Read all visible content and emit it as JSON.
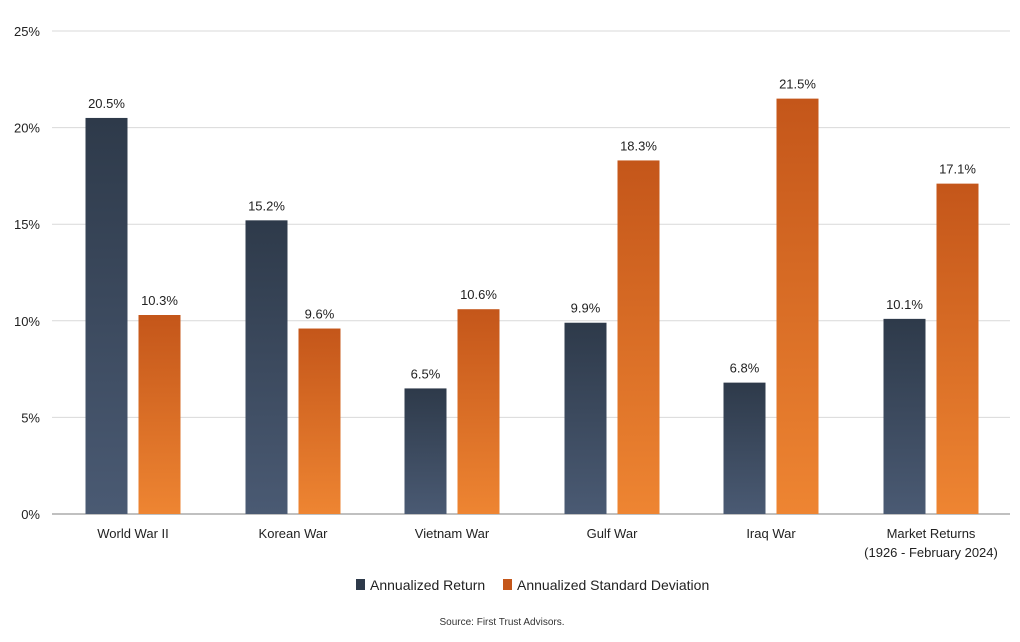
{
  "chart_data": {
    "type": "bar",
    "title": "",
    "xlabel": "",
    "ylabel": "",
    "ylim": [
      0,
      25
    ],
    "yticks": [
      0,
      5,
      10,
      15,
      20,
      25
    ],
    "ytick_labels": [
      "0%",
      "5%",
      "10%",
      "15%",
      "20%",
      "25%"
    ],
    "grid": true,
    "legend_position": "bottom-center",
    "categories": [
      [
        "World War II"
      ],
      [
        "Korean War"
      ],
      [
        "Vietnam War"
      ],
      [
        "Gulf War"
      ],
      [
        "Iraq War"
      ],
      [
        "Market Returns",
        "(1926 - February 2024)"
      ]
    ],
    "series": [
      {
        "name": "Annualized Return",
        "values": [
          20.5,
          15.2,
          6.5,
          9.9,
          6.8,
          10.1
        ],
        "labels": [
          "20.5%",
          "15.2%",
          "6.5%",
          "9.9%",
          "6.8%",
          "10.1%"
        ],
        "color_top": "#2e3a4a",
        "color_bottom": "#4a5a73"
      },
      {
        "name": "Annualized Standard Deviation",
        "values": [
          10.3,
          9.6,
          10.6,
          18.3,
          21.5,
          17.1
        ],
        "labels": [
          "10.3%",
          "9.6%",
          "10.6%",
          "18.3%",
          "21.5%",
          "17.1%"
        ],
        "color_top": "#c4561a",
        "color_bottom": "#ee8532"
      }
    ],
    "source": "Source: First Trust Advisors."
  }
}
